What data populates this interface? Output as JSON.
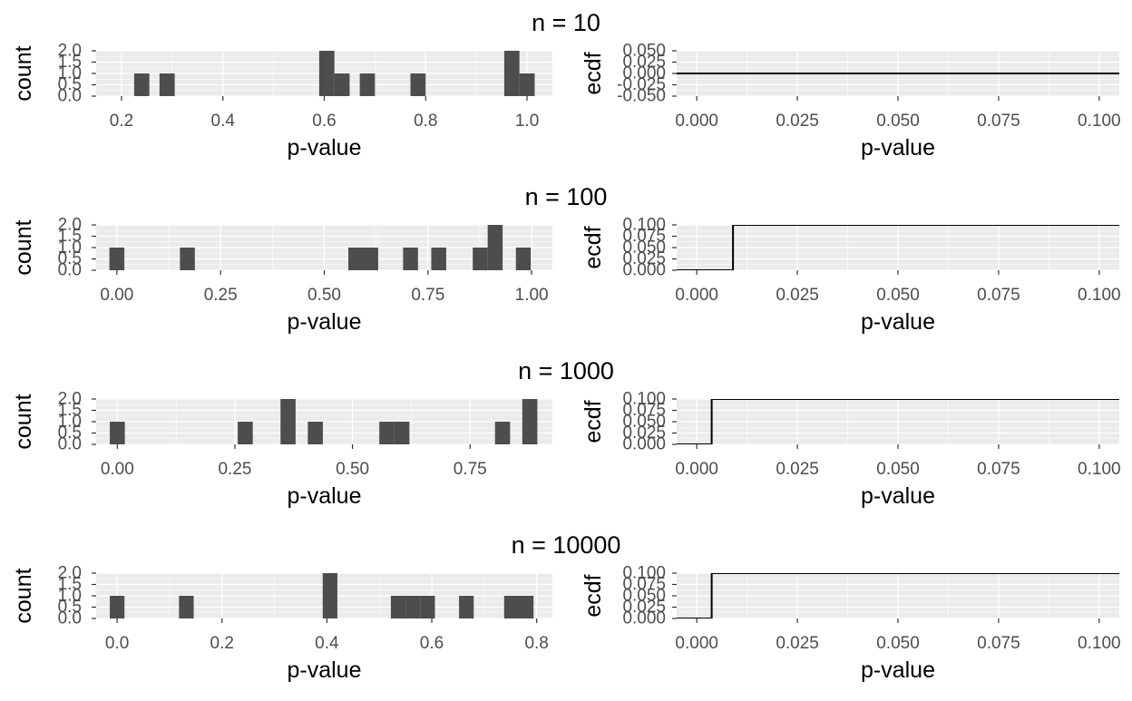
{
  "colors": {
    "panel_bg": "#ebebeb",
    "grid": "#ffffff",
    "bar": "#4d4d4d",
    "step_line": "#000000",
    "tick_text": "#4d4d4d",
    "axis_title": "#000000"
  },
  "chart_data": [
    {
      "title": "n = 10",
      "histogram": {
        "type": "bar",
        "xlabel": "p-value",
        "ylabel": "count",
        "xlim": [
          0.15,
          1.05
        ],
        "ylim": [
          0,
          2.0
        ],
        "x_ticks": [
          0.2,
          0.4,
          0.6,
          0.8,
          1.0
        ],
        "x_tick_labels": [
          "0.2",
          "0.4",
          "0.6",
          "0.8",
          "1.0"
        ],
        "y_ticks": [
          0.0,
          0.5,
          1.0,
          1.5,
          2.0
        ],
        "y_tick_labels": [
          "0.0",
          "0.5",
          "1.0",
          "1.5",
          "2.0"
        ],
        "bars": [
          {
            "x0": 0.225,
            "x1": 0.255,
            "count": 1
          },
          {
            "x0": 0.275,
            "x1": 0.305,
            "count": 1
          },
          {
            "x0": 0.59,
            "x1": 0.62,
            "count": 2
          },
          {
            "x0": 0.62,
            "x1": 0.65,
            "count": 1
          },
          {
            "x0": 0.67,
            "x1": 0.7,
            "count": 1
          },
          {
            "x0": 0.77,
            "x1": 0.8,
            "count": 1
          },
          {
            "x0": 0.955,
            "x1": 0.985,
            "count": 2
          },
          {
            "x0": 0.985,
            "x1": 1.015,
            "count": 1
          }
        ]
      },
      "ecdf": {
        "type": "line",
        "xlabel": "p-value",
        "ylabel": "ecdf",
        "xlim": [
          -0.005,
          0.105
        ],
        "ylim": [
          -0.05,
          0.05
        ],
        "x_ticks": [
          0.0,
          0.025,
          0.05,
          0.075,
          0.1
        ],
        "x_tick_labels": [
          "0.000",
          "0.025",
          "0.050",
          "0.075",
          "0.100"
        ],
        "y_ticks": [
          -0.05,
          -0.025,
          0.0,
          0.025,
          0.05
        ],
        "y_tick_labels": [
          "-0.050",
          "-0.025",
          "0.000",
          "0.025",
          "0.050"
        ],
        "steps": [
          [
            -0.005,
            0.0
          ],
          [
            0.105,
            0.0
          ]
        ]
      }
    },
    {
      "title": "n = 100",
      "histogram": {
        "type": "bar",
        "xlabel": "p-value",
        "ylabel": "count",
        "xlim": [
          -0.05,
          1.05
        ],
        "ylim": [
          0,
          2.0
        ],
        "x_ticks": [
          0.0,
          0.25,
          0.5,
          0.75,
          1.0
        ],
        "x_tick_labels": [
          "0.00",
          "0.25",
          "0.50",
          "0.75",
          "1.00"
        ],
        "y_ticks": [
          0.0,
          0.5,
          1.0,
          1.5,
          2.0
        ],
        "y_tick_labels": [
          "0.0",
          "0.5",
          "1.0",
          "1.5",
          "2.0"
        ],
        "bars": [
          {
            "x0": -0.018,
            "x1": 0.018,
            "count": 1
          },
          {
            "x0": 0.152,
            "x1": 0.188,
            "count": 1
          },
          {
            "x0": 0.558,
            "x1": 0.594,
            "count": 1
          },
          {
            "x0": 0.594,
            "x1": 0.63,
            "count": 1
          },
          {
            "x0": 0.69,
            "x1": 0.726,
            "count": 1
          },
          {
            "x0": 0.758,
            "x1": 0.794,
            "count": 1
          },
          {
            "x0": 0.858,
            "x1": 0.894,
            "count": 1
          },
          {
            "x0": 0.894,
            "x1": 0.93,
            "count": 2
          },
          {
            "x0": 0.962,
            "x1": 0.998,
            "count": 1
          }
        ]
      },
      "ecdf": {
        "type": "line",
        "xlabel": "p-value",
        "ylabel": "ecdf",
        "xlim": [
          -0.005,
          0.105
        ],
        "ylim": [
          0,
          0.1
        ],
        "x_ticks": [
          0.0,
          0.025,
          0.05,
          0.075,
          0.1
        ],
        "x_tick_labels": [
          "0.000",
          "0.025",
          "0.050",
          "0.075",
          "0.100"
        ],
        "y_ticks": [
          0.0,
          0.025,
          0.05,
          0.075,
          0.1
        ],
        "y_tick_labels": [
          "0.000",
          "0.025",
          "0.050",
          "0.075",
          "0.100"
        ],
        "steps": [
          [
            -0.005,
            0.0
          ],
          [
            0.009,
            0.0
          ],
          [
            0.009,
            0.1
          ],
          [
            0.105,
            0.1
          ]
        ]
      }
    },
    {
      "title": "n = 1000",
      "histogram": {
        "type": "bar",
        "xlabel": "p-value",
        "ylabel": "count",
        "xlim": [
          -0.045,
          0.925
        ],
        "ylim": [
          0,
          2.0
        ],
        "x_ticks": [
          0.0,
          0.25,
          0.5,
          0.75
        ],
        "x_tick_labels": [
          "0.00",
          "0.25",
          "0.50",
          "0.75"
        ],
        "y_ticks": [
          0.0,
          0.5,
          1.0,
          1.5,
          2.0
        ],
        "y_tick_labels": [
          "0.0",
          "0.5",
          "1.0",
          "1.5",
          "2.0"
        ],
        "bars": [
          {
            "x0": -0.016,
            "x1": 0.016,
            "count": 1
          },
          {
            "x0": 0.256,
            "x1": 0.288,
            "count": 1
          },
          {
            "x0": 0.347,
            "x1": 0.379,
            "count": 2
          },
          {
            "x0": 0.405,
            "x1": 0.437,
            "count": 1
          },
          {
            "x0": 0.557,
            "x1": 0.589,
            "count": 1
          },
          {
            "x0": 0.589,
            "x1": 0.621,
            "count": 1
          },
          {
            "x0": 0.803,
            "x1": 0.835,
            "count": 1
          },
          {
            "x0": 0.861,
            "x1": 0.893,
            "count": 2
          }
        ]
      },
      "ecdf": {
        "type": "line",
        "xlabel": "p-value",
        "ylabel": "ecdf",
        "xlim": [
          -0.005,
          0.105
        ],
        "ylim": [
          0,
          0.1
        ],
        "x_ticks": [
          0.0,
          0.025,
          0.05,
          0.075,
          0.1
        ],
        "x_tick_labels": [
          "0.000",
          "0.025",
          "0.050",
          "0.075",
          "0.100"
        ],
        "y_ticks": [
          0.0,
          0.025,
          0.05,
          0.075,
          0.1
        ],
        "y_tick_labels": [
          "0.000",
          "0.025",
          "0.050",
          "0.075",
          "0.100"
        ],
        "steps": [
          [
            -0.005,
            0.0
          ],
          [
            0.0037,
            0.0
          ],
          [
            0.0037,
            0.1
          ],
          [
            0.105,
            0.1
          ]
        ]
      }
    },
    {
      "title": "n = 10000",
      "histogram": {
        "type": "bar",
        "xlabel": "p-value",
        "ylabel": "count",
        "xlim": [
          -0.04,
          0.83
        ],
        "ylim": [
          0,
          2.0
        ],
        "x_ticks": [
          0.0,
          0.2,
          0.4,
          0.6,
          0.8
        ],
        "x_tick_labels": [
          "0.0",
          "0.2",
          "0.4",
          "0.6",
          "0.8"
        ],
        "y_ticks": [
          0.0,
          0.5,
          1.0,
          1.5,
          2.0
        ],
        "y_tick_labels": [
          "0.0",
          "0.5",
          "1.0",
          "1.5",
          "2.0"
        ],
        "bars": [
          {
            "x0": -0.014,
            "x1": 0.014,
            "count": 1
          },
          {
            "x0": 0.118,
            "x1": 0.146,
            "count": 1
          },
          {
            "x0": 0.392,
            "x1": 0.42,
            "count": 2
          },
          {
            "x0": 0.522,
            "x1": 0.55,
            "count": 1
          },
          {
            "x0": 0.55,
            "x1": 0.578,
            "count": 1
          },
          {
            "x0": 0.578,
            "x1": 0.606,
            "count": 1
          },
          {
            "x0": 0.652,
            "x1": 0.68,
            "count": 1
          },
          {
            "x0": 0.738,
            "x1": 0.766,
            "count": 1
          },
          {
            "x0": 0.766,
            "x1": 0.794,
            "count": 1
          }
        ]
      },
      "ecdf": {
        "type": "line",
        "xlabel": "p-value",
        "ylabel": "ecdf",
        "xlim": [
          -0.005,
          0.105
        ],
        "ylim": [
          0,
          0.1
        ],
        "x_ticks": [
          0.0,
          0.025,
          0.05,
          0.075,
          0.1
        ],
        "x_tick_labels": [
          "0.000",
          "0.025",
          "0.050",
          "0.075",
          "0.100"
        ],
        "y_ticks": [
          0.0,
          0.025,
          0.05,
          0.075,
          0.1
        ],
        "y_tick_labels": [
          "0.000",
          "0.025",
          "0.050",
          "0.075",
          "0.100"
        ],
        "steps": [
          [
            -0.005,
            0.0
          ],
          [
            0.0037,
            0.0
          ],
          [
            0.0037,
            0.1
          ],
          [
            0.105,
            0.1
          ]
        ]
      }
    }
  ]
}
